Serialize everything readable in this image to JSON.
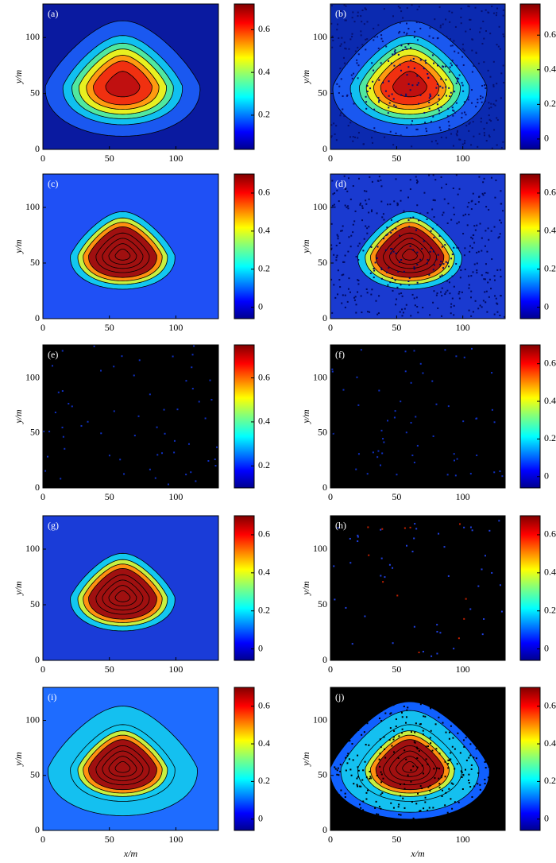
{
  "chart_data": [
    {
      "type": "heatmap",
      "label": "(a)",
      "xlim": [
        0,
        132
      ],
      "ylim": [
        0,
        130
      ],
      "xticks": [
        0,
        50,
        100
      ],
      "yticks": [
        0,
        50,
        100
      ],
      "ylabel": "y/m",
      "clim": [
        0.04,
        0.72
      ],
      "cticks": [
        0.2,
        0.4,
        0.6
      ]
    },
    {
      "type": "heatmap",
      "label": "(b)",
      "xlim": [
        0,
        132
      ],
      "ylim": [
        0,
        130
      ],
      "xticks": [
        0,
        50,
        100
      ],
      "yticks": [
        0,
        50,
        100
      ],
      "ylabel": "y/m",
      "clim": [
        -0.06,
        0.78
      ],
      "cticks": [
        0,
        0.2,
        0.4,
        0.6
      ]
    },
    {
      "type": "heatmap",
      "label": "(c)",
      "xlim": [
        0,
        132
      ],
      "ylim": [
        0,
        130
      ],
      "xticks": [
        0,
        50,
        100
      ],
      "yticks": [
        0,
        50,
        100
      ],
      "ylabel": "y/m",
      "clim": [
        -0.06,
        0.7
      ],
      "cticks": [
        0,
        0.2,
        0.4,
        0.6
      ]
    },
    {
      "type": "heatmap",
      "label": "(d)",
      "xlim": [
        0,
        132
      ],
      "ylim": [
        0,
        130
      ],
      "xticks": [
        0,
        50,
        100
      ],
      "yticks": [
        0,
        50,
        100
      ],
      "ylabel": "y/m",
      "clim": [
        -0.06,
        0.7
      ],
      "cticks": [
        0,
        0.2,
        0.4,
        0.6
      ]
    },
    {
      "type": "heatmap",
      "label": "(e)",
      "xlim": [
        0,
        132
      ],
      "ylim": [
        0,
        130
      ],
      "xticks": [
        0,
        50,
        100
      ],
      "yticks": [
        0,
        50,
        100
      ],
      "ylabel": "y/m",
      "clim": [
        0.1,
        0.75
      ],
      "cticks": [
        0.2,
        0.4,
        0.6
      ]
    },
    {
      "type": "heatmap",
      "label": "(f)",
      "xlim": [
        0,
        132
      ],
      "ylim": [
        0,
        130
      ],
      "xticks": [
        0,
        50,
        100
      ],
      "yticks": [
        0,
        50,
        100
      ],
      "ylabel": "y/m",
      "clim": [
        -0.06,
        0.7
      ],
      "cticks": [
        0,
        0.2,
        0.4,
        0.6
      ]
    },
    {
      "type": "heatmap",
      "label": "(g)",
      "xlim": [
        0,
        132
      ],
      "ylim": [
        0,
        130
      ],
      "xticks": [
        0,
        50,
        100
      ],
      "yticks": [
        0,
        50,
        100
      ],
      "ylabel": "y/m",
      "clim": [
        -0.06,
        0.7
      ],
      "cticks": [
        0,
        0.2,
        0.4,
        0.6
      ]
    },
    {
      "type": "heatmap",
      "label": "(h)",
      "xlim": [
        0,
        132
      ],
      "ylim": [
        0,
        130
      ],
      "xticks": [
        0,
        50,
        100
      ],
      "yticks": [
        0,
        50,
        100
      ],
      "ylabel": "y/m",
      "clim": [
        -0.06,
        0.7
      ],
      "cticks": [
        0,
        0.2,
        0.4,
        0.6
      ]
    },
    {
      "type": "heatmap",
      "label": "(i)",
      "xlim": [
        0,
        132
      ],
      "ylim": [
        0,
        130
      ],
      "xticks": [
        0,
        50,
        100
      ],
      "yticks": [
        0,
        50,
        100
      ],
      "ylabel": "y/m",
      "xlabel": "x/m",
      "clim": [
        -0.06,
        0.7
      ],
      "cticks": [
        0,
        0.2,
        0.4,
        0.6
      ]
    },
    {
      "type": "heatmap",
      "label": "(j)",
      "xlim": [
        0,
        132
      ],
      "ylim": [
        0,
        130
      ],
      "xticks": [
        0,
        50,
        100
      ],
      "yticks": [
        0,
        50,
        100
      ],
      "ylabel": "y/m",
      "xlabel": "x/m",
      "clim": [
        -0.06,
        0.7
      ],
      "cticks": [
        0,
        0.2,
        0.4,
        0.6
      ]
    }
  ]
}
